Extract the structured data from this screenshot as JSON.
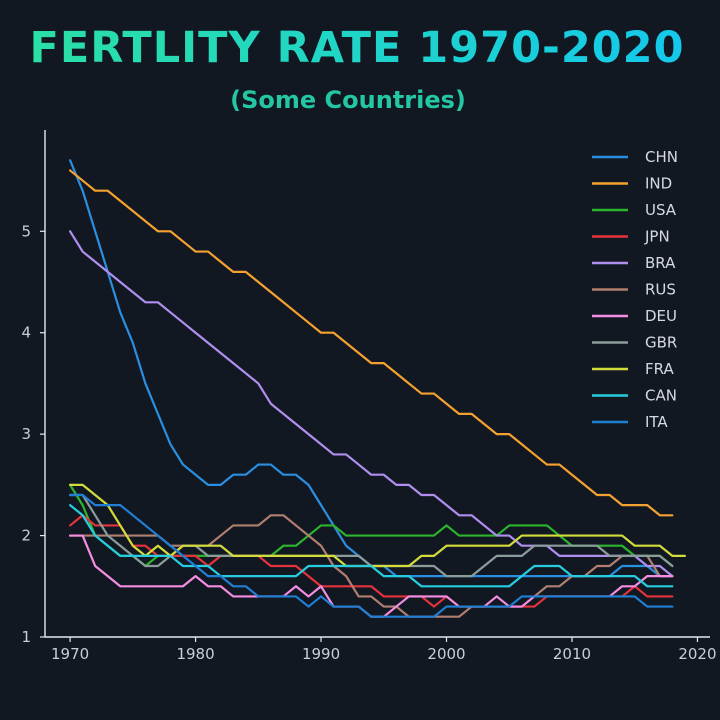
{
  "chart_data": {
    "type": "line",
    "title": "FERTLITY RATE 1970-2020",
    "subtitle": "(Some Countries)",
    "xlabel": "",
    "ylabel": "",
    "xlim": [
      1968,
      2021
    ],
    "ylim": [
      1,
      5.9
    ],
    "x_ticks": [
      1970,
      1980,
      1990,
      2000,
      2010,
      2020
    ],
    "y_ticks": [
      1,
      2,
      3,
      4,
      5
    ],
    "grid": false,
    "legend_position": "top-right",
    "colors": {
      "background": "#121822",
      "axis": "#e6e9ee",
      "title_gradient_start": "#2be0a4",
      "title_gradient_end": "#14c9ec",
      "subtitle": "#23c7a3"
    },
    "series": [
      {
        "name": "CHN",
        "color": "#2a8fe0",
        "x": [
          1970,
          1971,
          1972,
          1973,
          1974,
          1975,
          1976,
          1977,
          1978,
          1979,
          1980,
          1981,
          1982,
          1983,
          1984,
          1985,
          1986,
          1987,
          1988,
          1989,
          1990,
          1991,
          1992,
          1993,
          1994,
          1995,
          1996,
          1997,
          1998,
          1999,
          2000,
          2001,
          2002,
          2003,
          2004,
          2005,
          2006,
          2007,
          2008,
          2009,
          2010,
          2011,
          2012,
          2013,
          2014,
          2015,
          2016,
          2017,
          2018
        ],
        "y": [
          5.7,
          5.4,
          5.0,
          4.6,
          4.2,
          3.9,
          3.5,
          3.2,
          2.9,
          2.7,
          2.6,
          2.5,
          2.5,
          2.6,
          2.6,
          2.7,
          2.7,
          2.6,
          2.6,
          2.5,
          2.3,
          2.1,
          1.9,
          1.8,
          1.7,
          1.7,
          1.6,
          1.6,
          1.6,
          1.6,
          1.6,
          1.6,
          1.6,
          1.6,
          1.6,
          1.6,
          1.6,
          1.6,
          1.6,
          1.6,
          1.6,
          1.6,
          1.6,
          1.6,
          1.7,
          1.7,
          1.7,
          1.6,
          1.6
        ]
      },
      {
        "name": "IND",
        "color": "#f5a130",
        "x": [
          1970,
          1971,
          1972,
          1973,
          1974,
          1975,
          1976,
          1977,
          1978,
          1979,
          1980,
          1981,
          1982,
          1983,
          1984,
          1985,
          1986,
          1987,
          1988,
          1989,
          1990,
          1991,
          1992,
          1993,
          1994,
          1995,
          1996,
          1997,
          1998,
          1999,
          2000,
          2001,
          2002,
          2003,
          2004,
          2005,
          2006,
          2007,
          2008,
          2009,
          2010,
          2011,
          2012,
          2013,
          2014,
          2015,
          2016,
          2017,
          2018
        ],
        "y": [
          5.6,
          5.5,
          5.4,
          5.4,
          5.3,
          5.2,
          5.1,
          5.0,
          5.0,
          4.9,
          4.8,
          4.8,
          4.7,
          4.6,
          4.6,
          4.5,
          4.4,
          4.3,
          4.2,
          4.1,
          4.0,
          4.0,
          3.9,
          3.8,
          3.7,
          3.7,
          3.6,
          3.5,
          3.4,
          3.4,
          3.3,
          3.2,
          3.2,
          3.1,
          3.0,
          3.0,
          2.9,
          2.8,
          2.7,
          2.7,
          2.6,
          2.5,
          2.4,
          2.4,
          2.3,
          2.3,
          2.3,
          2.2,
          2.2
        ]
      },
      {
        "name": "USA",
        "color": "#2cb52c",
        "x": [
          1970,
          1971,
          1972,
          1973,
          1974,
          1975,
          1976,
          1977,
          1978,
          1979,
          1980,
          1981,
          1982,
          1983,
          1984,
          1985,
          1986,
          1987,
          1988,
          1989,
          1990,
          1991,
          1992,
          1993,
          1994,
          1995,
          1996,
          1997,
          1998,
          1999,
          2000,
          2001,
          2002,
          2003,
          2004,
          2005,
          2006,
          2007,
          2008,
          2009,
          2010,
          2011,
          2012,
          2013,
          2014,
          2015,
          2016,
          2017,
          2018
        ],
        "y": [
          2.5,
          2.3,
          2.0,
          1.9,
          1.8,
          1.8,
          1.7,
          1.8,
          1.8,
          1.8,
          1.8,
          1.8,
          1.8,
          1.8,
          1.8,
          1.8,
          1.8,
          1.9,
          1.9,
          2.0,
          2.1,
          2.1,
          2.0,
          2.0,
          2.0,
          2.0,
          2.0,
          2.0,
          2.0,
          2.0,
          2.1,
          2.0,
          2.0,
          2.0,
          2.0,
          2.1,
          2.1,
          2.1,
          2.1,
          2.0,
          1.9,
          1.9,
          1.9,
          1.9,
          1.9,
          1.8,
          1.8,
          1.8,
          1.7
        ]
      },
      {
        "name": "JPN",
        "color": "#e5333c",
        "x": [
          1970,
          1971,
          1972,
          1973,
          1974,
          1975,
          1976,
          1977,
          1978,
          1979,
          1980,
          1981,
          1982,
          1983,
          1984,
          1985,
          1986,
          1987,
          1988,
          1989,
          1990,
          1991,
          1992,
          1993,
          1994,
          1995,
          1996,
          1997,
          1998,
          1999,
          2000,
          2001,
          2002,
          2003,
          2004,
          2005,
          2006,
          2007,
          2008,
          2009,
          2010,
          2011,
          2012,
          2013,
          2014,
          2015,
          2016,
          2017,
          2018
        ],
        "y": [
          2.1,
          2.2,
          2.1,
          2.1,
          2.1,
          1.9,
          1.9,
          1.8,
          1.8,
          1.8,
          1.8,
          1.7,
          1.8,
          1.8,
          1.8,
          1.8,
          1.7,
          1.7,
          1.7,
          1.6,
          1.5,
          1.5,
          1.5,
          1.5,
          1.5,
          1.4,
          1.4,
          1.4,
          1.4,
          1.3,
          1.4,
          1.3,
          1.3,
          1.3,
          1.3,
          1.3,
          1.3,
          1.3,
          1.4,
          1.4,
          1.4,
          1.4,
          1.4,
          1.4,
          1.4,
          1.5,
          1.4,
          1.4,
          1.4
        ]
      },
      {
        "name": "BRA",
        "color": "#b08ef0",
        "x": [
          1970,
          1971,
          1972,
          1973,
          1974,
          1975,
          1976,
          1977,
          1978,
          1979,
          1980,
          1981,
          1982,
          1983,
          1984,
          1985,
          1986,
          1987,
          1988,
          1989,
          1990,
          1991,
          1992,
          1993,
          1994,
          1995,
          1996,
          1997,
          1998,
          1999,
          2000,
          2001,
          2002,
          2003,
          2004,
          2005,
          2006,
          2007,
          2008,
          2009,
          2010,
          2011,
          2012,
          2013,
          2014,
          2015,
          2016,
          2017,
          2018
        ],
        "y": [
          5.0,
          4.8,
          4.7,
          4.6,
          4.5,
          4.4,
          4.3,
          4.3,
          4.2,
          4.1,
          4.0,
          3.9,
          3.8,
          3.7,
          3.6,
          3.5,
          3.3,
          3.2,
          3.1,
          3.0,
          2.9,
          2.8,
          2.8,
          2.7,
          2.6,
          2.6,
          2.5,
          2.5,
          2.4,
          2.4,
          2.3,
          2.2,
          2.2,
          2.1,
          2.0,
          2.0,
          1.9,
          1.9,
          1.9,
          1.8,
          1.8,
          1.8,
          1.8,
          1.8,
          1.8,
          1.8,
          1.7,
          1.7,
          1.6
        ]
      },
      {
        "name": "RUS",
        "color": "#b07f70",
        "x": [
          1970,
          1971,
          1972,
          1973,
          1974,
          1975,
          1976,
          1977,
          1978,
          1979,
          1980,
          1981,
          1982,
          1983,
          1984,
          1985,
          1986,
          1987,
          1988,
          1989,
          1990,
          1991,
          1992,
          1993,
          1994,
          1995,
          1996,
          1997,
          1998,
          1999,
          2000,
          2001,
          2002,
          2003,
          2004,
          2005,
          2006,
          2007,
          2008,
          2009,
          2010,
          2011,
          2012,
          2013,
          2014,
          2015,
          2016,
          2017,
          2018
        ],
        "y": [
          2.0,
          2.0,
          2.0,
          2.0,
          2.0,
          2.0,
          2.0,
          2.0,
          1.9,
          1.9,
          1.9,
          1.9,
          2.0,
          2.1,
          2.1,
          2.1,
          2.2,
          2.2,
          2.1,
          2.0,
          1.9,
          1.7,
          1.6,
          1.4,
          1.4,
          1.3,
          1.3,
          1.2,
          1.2,
          1.2,
          1.2,
          1.2,
          1.3,
          1.3,
          1.3,
          1.3,
          1.3,
          1.4,
          1.5,
          1.5,
          1.6,
          1.6,
          1.7,
          1.7,
          1.8,
          1.8,
          1.8,
          1.6,
          1.6
        ]
      },
      {
        "name": "DEU",
        "color": "#f58ee3",
        "x": [
          1970,
          1971,
          1972,
          1973,
          1974,
          1975,
          1976,
          1977,
          1978,
          1979,
          1980,
          1981,
          1982,
          1983,
          1984,
          1985,
          1986,
          1987,
          1988,
          1989,
          1990,
          1991,
          1992,
          1993,
          1994,
          1995,
          1996,
          1997,
          1998,
          1999,
          2000,
          2001,
          2002,
          2003,
          2004,
          2005,
          2006,
          2007,
          2008,
          2009,
          2010,
          2011,
          2012,
          2013,
          2014,
          2015,
          2016,
          2017,
          2018
        ],
        "y": [
          2.0,
          2.0,
          1.7,
          1.6,
          1.5,
          1.5,
          1.5,
          1.5,
          1.5,
          1.5,
          1.6,
          1.5,
          1.5,
          1.4,
          1.4,
          1.4,
          1.4,
          1.4,
          1.5,
          1.4,
          1.5,
          1.3,
          1.3,
          1.3,
          1.2,
          1.2,
          1.3,
          1.4,
          1.4,
          1.4,
          1.4,
          1.3,
          1.3,
          1.3,
          1.4,
          1.3,
          1.3,
          1.4,
          1.4,
          1.4,
          1.4,
          1.4,
          1.4,
          1.4,
          1.5,
          1.5,
          1.6,
          1.6,
          1.6
        ]
      },
      {
        "name": "GBR",
        "color": "#8b9d9a",
        "x": [
          1970,
          1971,
          1972,
          1973,
          1974,
          1975,
          1976,
          1977,
          1978,
          1979,
          1980,
          1981,
          1982,
          1983,
          1984,
          1985,
          1986,
          1987,
          1988,
          1989,
          1990,
          1991,
          1992,
          1993,
          1994,
          1995,
          1996,
          1997,
          1998,
          1999,
          2000,
          2001,
          2002,
          2003,
          2004,
          2005,
          2006,
          2007,
          2008,
          2009,
          2010,
          2011,
          2012,
          2013,
          2014,
          2015,
          2016,
          2017,
          2018
        ],
        "y": [
          2.4,
          2.4,
          2.2,
          2.0,
          1.9,
          1.8,
          1.7,
          1.7,
          1.8,
          1.9,
          1.9,
          1.8,
          1.8,
          1.8,
          1.8,
          1.8,
          1.8,
          1.8,
          1.8,
          1.8,
          1.8,
          1.8,
          1.8,
          1.8,
          1.7,
          1.7,
          1.7,
          1.7,
          1.7,
          1.7,
          1.6,
          1.6,
          1.6,
          1.7,
          1.8,
          1.8,
          1.8,
          1.9,
          1.9,
          1.9,
          1.9,
          1.9,
          1.9,
          1.8,
          1.8,
          1.8,
          1.8,
          1.8,
          1.7
        ]
      },
      {
        "name": "FRA",
        "color": "#d4dc3c",
        "x": [
          1970,
          1971,
          1972,
          1973,
          1974,
          1975,
          1976,
          1977,
          1978,
          1979,
          1980,
          1981,
          1982,
          1983,
          1984,
          1985,
          1986,
          1987,
          1988,
          1989,
          1990,
          1991,
          1992,
          1993,
          1994,
          1995,
          1996,
          1997,
          1998,
          1999,
          2000,
          2001,
          2002,
          2003,
          2004,
          2005,
          2006,
          2007,
          2008,
          2009,
          2010,
          2011,
          2012,
          2013,
          2014,
          2015,
          2016,
          2017,
          2018,
          2019
        ],
        "y": [
          2.5,
          2.5,
          2.4,
          2.3,
          2.1,
          1.9,
          1.8,
          1.9,
          1.8,
          1.9,
          1.9,
          1.9,
          1.9,
          1.8,
          1.8,
          1.8,
          1.8,
          1.8,
          1.8,
          1.8,
          1.8,
          1.8,
          1.7,
          1.7,
          1.7,
          1.7,
          1.7,
          1.7,
          1.8,
          1.8,
          1.9,
          1.9,
          1.9,
          1.9,
          1.9,
          1.9,
          2.0,
          2.0,
          2.0,
          2.0,
          2.0,
          2.0,
          2.0,
          2.0,
          2.0,
          1.9,
          1.9,
          1.9,
          1.8,
          1.8
        ]
      },
      {
        "name": "CAN",
        "color": "#26cde0",
        "x": [
          1970,
          1971,
          1972,
          1973,
          1974,
          1975,
          1976,
          1977,
          1978,
          1979,
          1980,
          1981,
          1982,
          1983,
          1984,
          1985,
          1986,
          1987,
          1988,
          1989,
          1990,
          1991,
          1992,
          1993,
          1994,
          1995,
          1996,
          1997,
          1998,
          1999,
          2000,
          2001,
          2002,
          2003,
          2004,
          2005,
          2006,
          2007,
          2008,
          2009,
          2010,
          2011,
          2012,
          2013,
          2014,
          2015,
          2016,
          2017,
          2018
        ],
        "y": [
          2.3,
          2.2,
          2.0,
          1.9,
          1.8,
          1.8,
          1.8,
          1.8,
          1.8,
          1.7,
          1.7,
          1.7,
          1.6,
          1.6,
          1.6,
          1.6,
          1.6,
          1.6,
          1.6,
          1.7,
          1.7,
          1.7,
          1.7,
          1.7,
          1.7,
          1.6,
          1.6,
          1.6,
          1.5,
          1.5,
          1.5,
          1.5,
          1.5,
          1.5,
          1.5,
          1.5,
          1.6,
          1.7,
          1.7,
          1.7,
          1.6,
          1.6,
          1.6,
          1.6,
          1.6,
          1.6,
          1.5,
          1.5,
          1.5
        ]
      },
      {
        "name": "ITA",
        "color": "#1f7fd4",
        "x": [
          1970,
          1971,
          1972,
          1973,
          1974,
          1975,
          1976,
          1977,
          1978,
          1979,
          1980,
          1981,
          1982,
          1983,
          1984,
          1985,
          1986,
          1987,
          1988,
          1989,
          1990,
          1991,
          1992,
          1993,
          1994,
          1995,
          1996,
          1997,
          1998,
          1999,
          2000,
          2001,
          2002,
          2003,
          2004,
          2005,
          2006,
          2007,
          2008,
          2009,
          2010,
          2011,
          2012,
          2013,
          2014,
          2015,
          2016,
          2017,
          2018
        ],
        "y": [
          2.4,
          2.4,
          2.3,
          2.3,
          2.3,
          2.2,
          2.1,
          2.0,
          1.9,
          1.8,
          1.7,
          1.6,
          1.6,
          1.5,
          1.5,
          1.4,
          1.4,
          1.4,
          1.4,
          1.3,
          1.4,
          1.3,
          1.3,
          1.3,
          1.2,
          1.2,
          1.2,
          1.2,
          1.2,
          1.2,
          1.3,
          1.3,
          1.3,
          1.3,
          1.3,
          1.3,
          1.4,
          1.4,
          1.4,
          1.4,
          1.4,
          1.4,
          1.4,
          1.4,
          1.4,
          1.4,
          1.3,
          1.3,
          1.3
        ]
      }
    ]
  }
}
